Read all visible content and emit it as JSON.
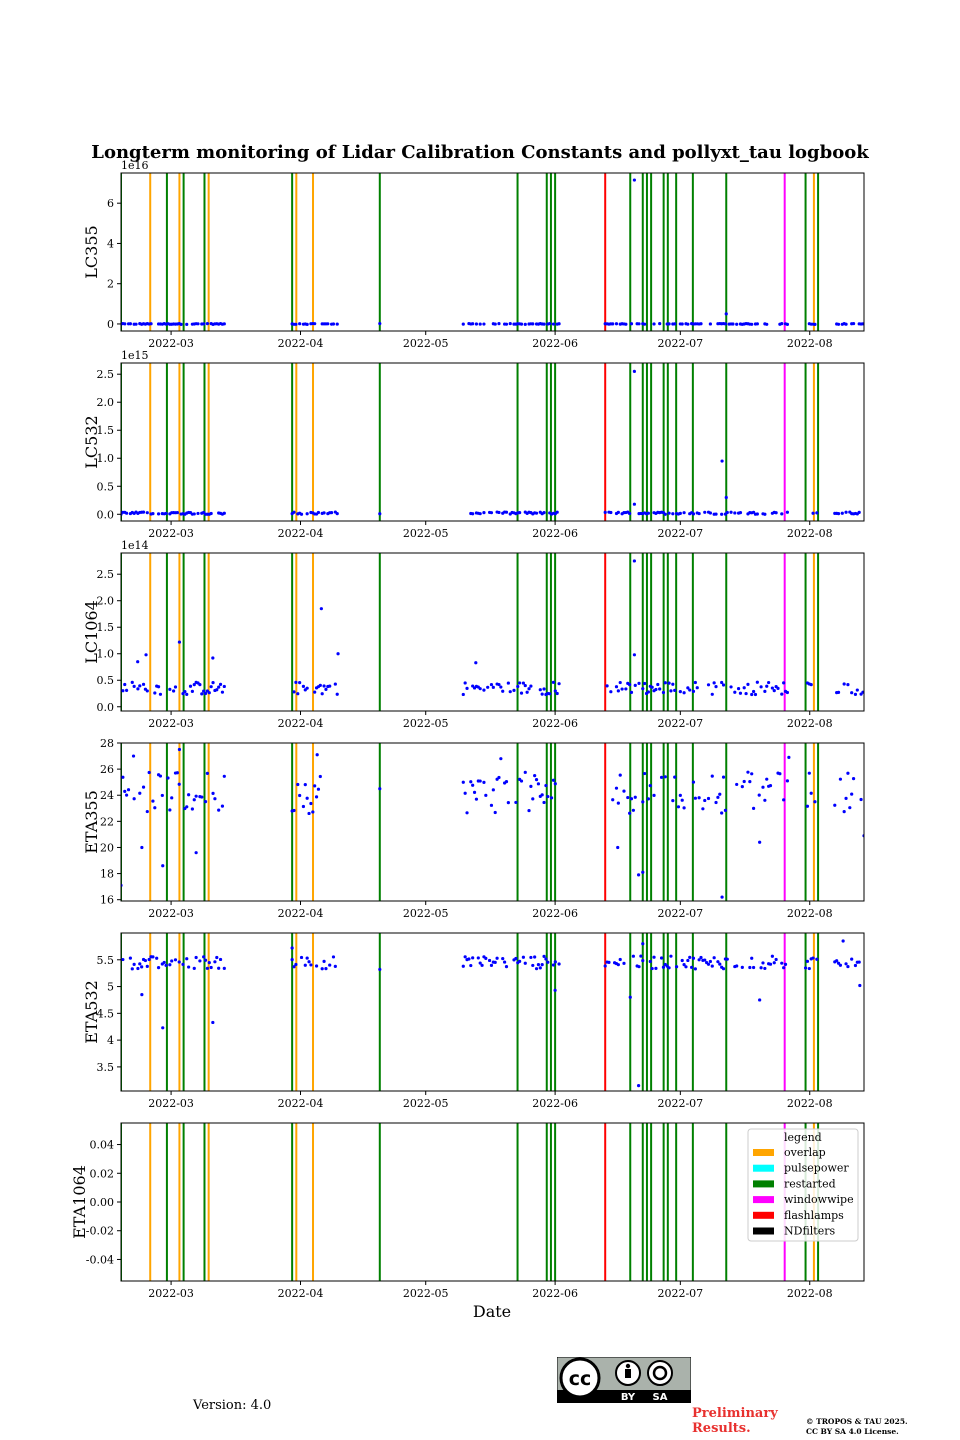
{
  "header": {
    "title": "Longterm monitoring of Lidar Calibration Constants and pollyxt_tau logbook"
  },
  "footer": {
    "version": "Version: 4.0",
    "preliminary": [
      "Preliminary",
      "Results."
    ],
    "copyright": [
      "© TROPOS & TAU 2025.",
      "CC BY SA 4.0 License."
    ],
    "cc_badge": {
      "cc": "cc",
      "by": "BY",
      "sa": "SA",
      "icons": [
        "cc-icon",
        "by-icon",
        "sa-icon"
      ]
    }
  },
  "chart_data": {
    "type": "scatter",
    "xlabel": "Date",
    "x_range": [
      "2022-02-17",
      "2022-08-14"
    ],
    "x_ticks": [
      "2022-03",
      "2022-04",
      "2022-05",
      "2022-06",
      "2022-07",
      "2022-08"
    ],
    "point_color": "#0000ff",
    "logbook_events": [
      {
        "date": "2022-02-17",
        "type": "restarted"
      },
      {
        "date": "2022-02-24",
        "type": "overlap"
      },
      {
        "date": "2022-02-28",
        "type": "restarted"
      },
      {
        "date": "2022-03-03",
        "type": "overlap"
      },
      {
        "date": "2022-03-04",
        "type": "restarted"
      },
      {
        "date": "2022-03-09",
        "type": "restarted"
      },
      {
        "date": "2022-03-10",
        "type": "overlap"
      },
      {
        "date": "2022-03-30",
        "type": "restarted"
      },
      {
        "date": "2022-03-31",
        "type": "overlap"
      },
      {
        "date": "2022-04-04",
        "type": "overlap"
      },
      {
        "date": "2022-04-20",
        "type": "restarted"
      },
      {
        "date": "2022-05-23",
        "type": "restarted"
      },
      {
        "date": "2022-05-30",
        "type": "restarted"
      },
      {
        "date": "2022-05-31",
        "type": "restarted"
      },
      {
        "date": "2022-06-01",
        "type": "restarted"
      },
      {
        "date": "2022-06-13",
        "type": "flashlamps"
      },
      {
        "date": "2022-06-19",
        "type": "restarted"
      },
      {
        "date": "2022-06-22",
        "type": "restarted"
      },
      {
        "date": "2022-06-23",
        "type": "restarted"
      },
      {
        "date": "2022-06-24",
        "type": "restarted"
      },
      {
        "date": "2022-06-27",
        "type": "restarted"
      },
      {
        "date": "2022-06-28",
        "type": "restarted"
      },
      {
        "date": "2022-06-30",
        "type": "restarted"
      },
      {
        "date": "2022-07-04",
        "type": "restarted"
      },
      {
        "date": "2022-07-12",
        "type": "restarted"
      },
      {
        "date": "2022-07-26",
        "type": "windowwipe"
      },
      {
        "date": "2022-07-31",
        "type": "restarted"
      },
      {
        "date": "2022-08-02",
        "type": "overlap"
      },
      {
        "date": "2022-08-03",
        "type": "restarted"
      }
    ],
    "legend": {
      "title": "legend",
      "placement": "upper-right of ETA1064 panel",
      "items": [
        {
          "label": "overlap",
          "color": "#ffa500"
        },
        {
          "label": "pulsepower",
          "color": "#00ffff"
        },
        {
          "label": "restarted",
          "color": "#008000"
        },
        {
          "label": "windowwipe",
          "color": "#ff00ff"
        },
        {
          "label": "flashlamps",
          "color": "#ff0000"
        },
        {
          "label": "NDfilters",
          "color": "#000000"
        }
      ]
    },
    "panels": [
      {
        "ylabel": "LC355",
        "exponent": "1e16",
        "ylim": [
          -0.35,
          7.5
        ],
        "yticks": [
          0,
          2,
          4,
          6
        ],
        "dense": [
          [
            "2022-02-17",
            "2022-03-14"
          ],
          [
            "2022-03-30",
            "2022-04-10"
          ],
          [
            "2022-05-10",
            "2022-06-02"
          ],
          [
            "2022-06-13",
            "2022-07-27"
          ],
          [
            "2022-07-31",
            "2022-08-03"
          ],
          [
            "2022-08-07",
            "2022-08-14"
          ]
        ],
        "dense_mean": 0.0,
        "dense_spread": 0.02,
        "points": [
          [
            "2022-06-20",
            7.15
          ],
          [
            "2022-07-12",
            0.5
          ],
          [
            "2022-04-20",
            0.02
          ]
        ]
      },
      {
        "ylabel": "LC532",
        "exponent": "1e15",
        "ylim": [
          -0.12,
          2.7
        ],
        "yticks": [
          0.0,
          0.5,
          1.0,
          1.5,
          2.0,
          2.5
        ],
        "dense": [
          [
            "2022-02-17",
            "2022-03-14"
          ],
          [
            "2022-03-30",
            "2022-04-10"
          ],
          [
            "2022-05-10",
            "2022-06-02"
          ],
          [
            "2022-06-13",
            "2022-07-27"
          ],
          [
            "2022-07-31",
            "2022-08-03"
          ],
          [
            "2022-08-07",
            "2022-08-14"
          ]
        ],
        "dense_mean": 0.02,
        "dense_spread": 0.02,
        "points": [
          [
            "2022-06-20",
            2.55
          ],
          [
            "2022-07-11",
            0.95
          ],
          [
            "2022-07-12",
            0.3
          ],
          [
            "2022-06-20",
            0.18
          ],
          [
            "2022-04-20",
            0.01
          ]
        ]
      },
      {
        "ylabel": "LC1064",
        "exponent": "1e14",
        "ylim": [
          -0.08,
          2.9
        ],
        "yticks": [
          0.0,
          0.5,
          1.0,
          1.5,
          2.0,
          2.5
        ],
        "dense": [
          [
            "2022-02-17",
            "2022-03-14"
          ],
          [
            "2022-03-30",
            "2022-04-10"
          ],
          [
            "2022-05-10",
            "2022-06-02"
          ],
          [
            "2022-06-13",
            "2022-07-27"
          ],
          [
            "2022-07-31",
            "2022-08-03"
          ],
          [
            "2022-08-07",
            "2022-08-14"
          ]
        ],
        "dense_mean": 0.35,
        "dense_spread": 0.12,
        "points": [
          [
            "2022-06-20",
            2.75
          ],
          [
            "2022-04-06",
            1.85
          ],
          [
            "2022-03-03",
            1.22
          ],
          [
            "2022-04-10",
            1.0
          ],
          [
            "2022-02-23",
            0.98
          ],
          [
            "2022-06-20",
            0.98
          ],
          [
            "2022-02-21",
            0.85
          ],
          [
            "2022-03-11",
            0.92
          ],
          [
            "2022-05-13",
            0.83
          ]
        ]
      },
      {
        "ylabel": "ETA355",
        "exponent": "",
        "ylim": [
          15.9,
          28.0
        ],
        "yticks": [
          16,
          18,
          20,
          22,
          24,
          26,
          28
        ],
        "dense": [
          [
            "2022-02-17",
            "2022-03-14"
          ],
          [
            "2022-03-30",
            "2022-04-06"
          ],
          [
            "2022-05-10",
            "2022-06-02"
          ],
          [
            "2022-06-13",
            "2022-07-27"
          ],
          [
            "2022-07-31",
            "2022-08-03"
          ],
          [
            "2022-08-07",
            "2022-08-14"
          ]
        ],
        "dense_mean": 24.2,
        "dense_spread": 1.6,
        "points": [
          [
            "2022-02-17",
            17.1
          ],
          [
            "2022-02-22",
            20.0
          ],
          [
            "2022-02-27",
            18.6
          ],
          [
            "2022-03-07",
            19.6
          ],
          [
            "2022-03-03",
            27.5
          ],
          [
            "2022-02-20",
            27.0
          ],
          [
            "2022-04-05",
            27.1
          ],
          [
            "2022-04-20",
            24.5
          ],
          [
            "2022-06-21",
            17.9
          ],
          [
            "2022-06-22",
            18.1
          ],
          [
            "2022-07-11",
            16.2
          ],
          [
            "2022-07-20",
            20.4
          ],
          [
            "2022-05-19",
            26.8
          ],
          [
            "2022-07-27",
            26.9
          ],
          [
            "2022-08-14",
            20.9
          ],
          [
            "2022-06-16",
            20.0
          ]
        ]
      },
      {
        "ylabel": "ETA532",
        "exponent": "",
        "ylim": [
          3.05,
          6.0
        ],
        "yticks": [
          3.5,
          4.0,
          4.5,
          5.0,
          5.5
        ],
        "dense": [
          [
            "2022-02-17",
            "2022-03-14"
          ],
          [
            "2022-03-30",
            "2022-04-10"
          ],
          [
            "2022-05-10",
            "2022-06-02"
          ],
          [
            "2022-06-13",
            "2022-07-27"
          ],
          [
            "2022-07-31",
            "2022-08-03"
          ],
          [
            "2022-08-07",
            "2022-08-14"
          ]
        ],
        "dense_mean": 5.45,
        "dense_spread": 0.12,
        "points": [
          [
            "2022-02-27",
            4.23
          ],
          [
            "2022-03-11",
            4.33
          ],
          [
            "2022-02-22",
            4.85
          ],
          [
            "2022-06-21",
            3.15
          ],
          [
            "2022-06-19",
            4.8
          ],
          [
            "2022-07-20",
            4.75
          ],
          [
            "2022-06-01",
            4.93
          ],
          [
            "2022-08-13",
            5.02
          ],
          [
            "2022-08-09",
            5.85
          ],
          [
            "2022-06-22",
            5.8
          ],
          [
            "2022-03-30",
            5.72
          ],
          [
            "2022-04-20",
            5.32
          ]
        ]
      },
      {
        "ylabel": "ETA1064",
        "exponent": "",
        "ylim": [
          -0.055,
          0.055
        ],
        "yticks": [
          -0.04,
          -0.02,
          0.0,
          0.02,
          0.04
        ],
        "dense": [],
        "dense_mean": 0,
        "dense_spread": 0,
        "points": []
      }
    ]
  }
}
